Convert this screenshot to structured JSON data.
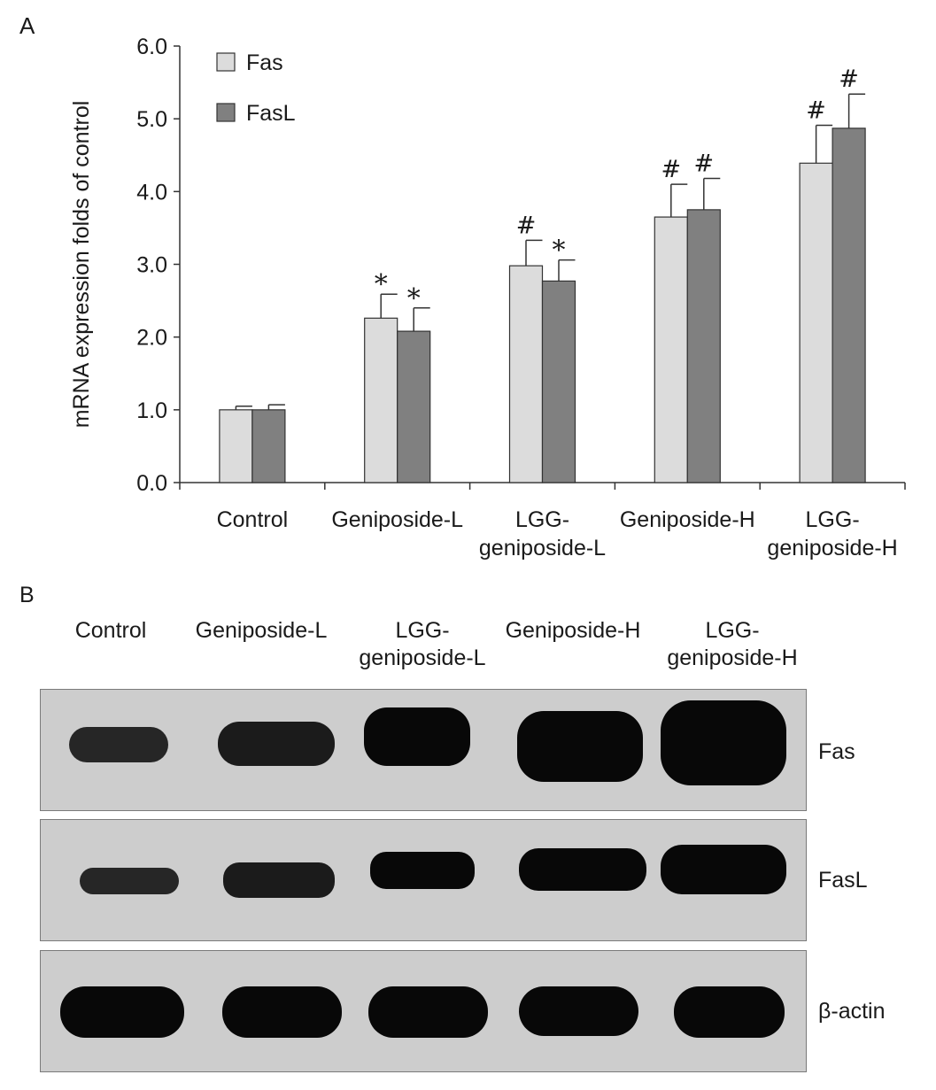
{
  "panel_a_label": "A",
  "panel_b_label": "B",
  "chart_data": {
    "type": "bar",
    "title": "",
    "xlabel": "",
    "ylabel": "mRNA expression folds of control",
    "ylim": [
      0,
      6
    ],
    "yticks": [
      "0.0",
      "1.0",
      "2.0",
      "3.0",
      "4.0",
      "5.0",
      "6.0"
    ],
    "categories": [
      "Control",
      "Geniposide-L",
      "LGG-\ngeniposide-L",
      "Geniposide-H",
      "LGG-\ngeniposide-H"
    ],
    "legend_position": "top-left",
    "grid": false,
    "series": [
      {
        "name": "Fas",
        "color": "#dcdcdc",
        "values": [
          1.0,
          2.26,
          2.98,
          3.65,
          4.39
        ],
        "errors": [
          0.05,
          0.33,
          0.35,
          0.45,
          0.52
        ],
        "markers": [
          "",
          "*",
          "#",
          "#",
          "#"
        ]
      },
      {
        "name": "FasL",
        "color": "#808080",
        "values": [
          1.0,
          2.08,
          2.77,
          3.75,
          4.87
        ],
        "errors": [
          0.07,
          0.32,
          0.29,
          0.43,
          0.47
        ],
        "markers": [
          "",
          "*",
          "*",
          "#",
          "#"
        ]
      }
    ]
  },
  "blot": {
    "lanes": [
      "Control",
      "Geniposide-L",
      "LGG-\ngeniposide-L",
      "Geniposide-H",
      "LGG-\ngeniposide-H"
    ],
    "rows": [
      "Fas",
      "FasL",
      "β-actin"
    ]
  }
}
